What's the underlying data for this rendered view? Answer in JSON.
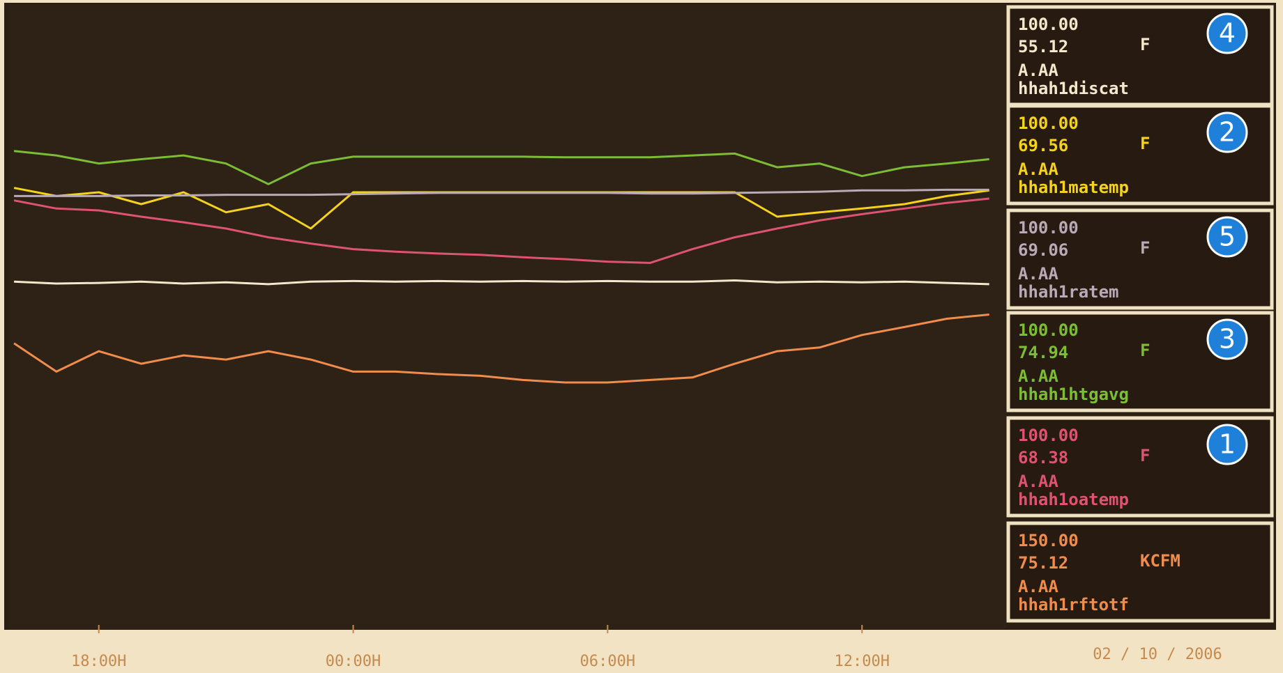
{
  "chart_data": {
    "type": "line",
    "xlim": [
      -8.1,
      15.4
    ],
    "xticks": [
      {
        "value": -6,
        "label": "18:00H"
      },
      {
        "value": 0,
        "label": "00:00H"
      },
      {
        "value": 6,
        "label": "06:00H"
      },
      {
        "value": 12,
        "label": "12:00H"
      }
    ],
    "date": "02 / 10 / 2006",
    "x": [
      -8,
      -7,
      -6,
      -5,
      -4,
      -3,
      -2,
      -1,
      0,
      1,
      2,
      3,
      4,
      5,
      6,
      7,
      8,
      9,
      10,
      11,
      12,
      13,
      14,
      15
    ],
    "series": [
      {
        "name": "hhah1discat",
        "badge": "4",
        "color": "#f4e8cc",
        "ylim": [
          0,
          100
        ],
        "scale_label": "100.00",
        "current": 55.12,
        "unit": "F",
        "min_label": "A.AA",
        "values": [
          55.6,
          55.3,
          55.4,
          55.6,
          55.3,
          55.5,
          55.2,
          55.6,
          55.7,
          55.6,
          55.7,
          55.6,
          55.7,
          55.6,
          55.7,
          55.6,
          55.6,
          55.8,
          55.5,
          55.6,
          55.5,
          55.6,
          55.4,
          55.2
        ]
      },
      {
        "name": "hhah1matemp",
        "badge": "2",
        "color": "#f5d21e",
        "ylim": [
          0,
          100
        ],
        "scale_label": "100.00",
        "current": 69.56,
        "unit": "F",
        "min_label": "A.AA",
        "values": [
          70.6,
          69.3,
          69.9,
          68.0,
          69.9,
          66.7,
          68.0,
          64.1,
          69.9,
          69.9,
          69.9,
          69.9,
          69.9,
          69.9,
          69.9,
          69.9,
          69.9,
          69.9,
          66.0,
          66.7,
          67.3,
          68.0,
          69.3,
          70.2
        ]
      },
      {
        "name": "hhah1ratem",
        "badge": "5",
        "color": "#b8aab6",
        "ylim": [
          0,
          100
        ],
        "scale_label": "100.00",
        "current": 69.06,
        "unit": "F",
        "min_label": "A.AA",
        "values": [
          69.3,
          69.3,
          69.3,
          69.4,
          69.4,
          69.5,
          69.5,
          69.5,
          69.6,
          69.7,
          69.8,
          69.8,
          69.8,
          69.8,
          69.8,
          69.7,
          69.7,
          69.8,
          69.9,
          70.0,
          70.2,
          70.2,
          70.3,
          70.3
        ]
      },
      {
        "name": "hhah1htgavg",
        "badge": "3",
        "color": "#7cbd36",
        "ylim": [
          0,
          100
        ],
        "scale_label": "100.00",
        "current": 74.94,
        "unit": "F",
        "min_label": "A.AA",
        "values": [
          76.5,
          75.8,
          74.5,
          75.2,
          75.8,
          74.5,
          71.2,
          74.5,
          75.6,
          75.6,
          75.6,
          75.6,
          75.6,
          75.5,
          75.5,
          75.5,
          75.8,
          76.1,
          73.9,
          74.5,
          72.5,
          73.9,
          74.5,
          75.2
        ]
      },
      {
        "name": "hhah1oatemp",
        "badge": "1",
        "color": "#dc5470",
        "ylim": [
          0,
          100
        ],
        "scale_label": "100.00",
        "current": 68.38,
        "unit": "F",
        "min_label": "A.AA",
        "values": [
          68.6,
          67.3,
          67.0,
          66.0,
          65.1,
          64.1,
          62.7,
          61.7,
          60.8,
          60.4,
          60.1,
          59.9,
          59.5,
          59.2,
          58.8,
          58.6,
          60.8,
          62.7,
          64.1,
          65.4,
          66.4,
          67.3,
          68.2,
          68.9
        ]
      },
      {
        "name": "hhah1rftotf",
        "color": "#f08c4c",
        "ylim": [
          0,
          150
        ],
        "scale_label": "150.00",
        "current": 75.12,
        "unit": "KCFM",
        "min_label": "A.AA",
        "values": [
          68.6,
          61.8,
          66.7,
          63.7,
          65.7,
          64.7,
          66.7,
          64.7,
          61.8,
          61.8,
          61.2,
          60.8,
          59.8,
          59.2,
          59.2,
          59.8,
          60.4,
          63.7,
          66.7,
          67.6,
          70.6,
          72.5,
          74.5,
          75.5
        ]
      }
    ]
  }
}
